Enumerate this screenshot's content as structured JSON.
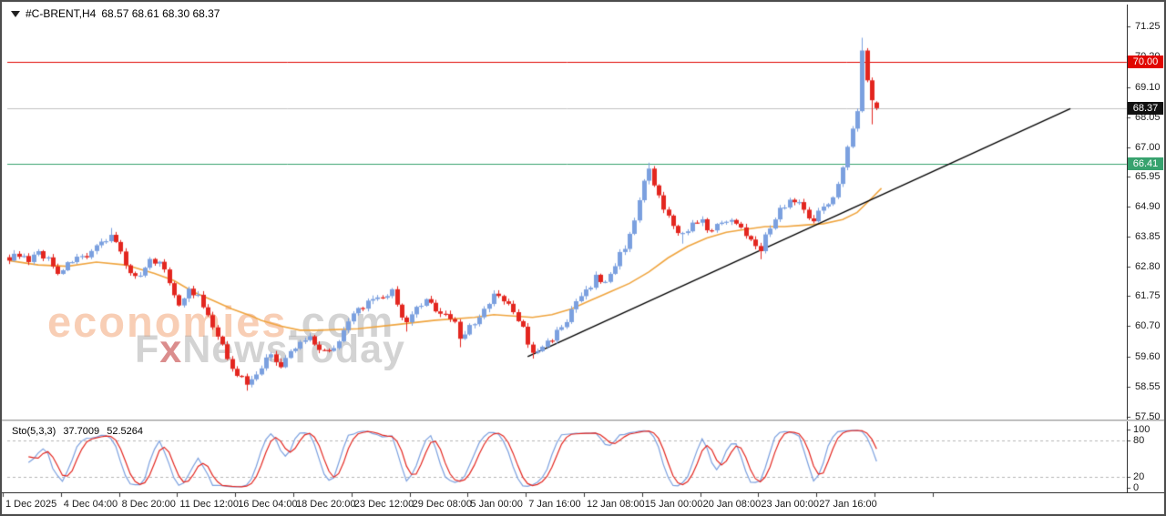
{
  "window": {
    "title_symbol": "#C-BRENT,H4",
    "title_quote": "68.57 68.61 68.30 68.37"
  },
  "watermark": {
    "line1": "economies",
    "line1_suffix": ".com",
    "line2_prefix": "F",
    "line2_x": "x",
    "line2_suffix": "NewsToday"
  },
  "colors": {
    "up_candle": "#7ba0df",
    "down_candle": "#e3261f",
    "ma_line": "#efa43e",
    "trend_line": "#000000",
    "stoch_k": "#7ba0df",
    "stoch_d": "#e3261f",
    "stoch_level_lines": "#b4b4b4",
    "axis_text": "#1a1a1a",
    "watermark_orange": "rgba(243,166,121,0.55)",
    "watermark_gray": "rgba(175,175,175,0.55)",
    "watermark_x_red": "rgba(200,80,80,0.65)"
  },
  "chart_data": {
    "type": "candlestick",
    "symbol": "#C-BRENT",
    "timeframe": "H4",
    "title": "#C-BRENT,H4 68.57 68.61 68.30 68.37",
    "last_quote": {
      "open": 68.57,
      "high": 68.61,
      "low": 68.3,
      "close": 68.37
    },
    "y_axis_ticks": [
      "71.25",
      "70.20",
      "69.10",
      "68.05",
      "67.00",
      "65.95",
      "64.90",
      "63.85",
      "62.80",
      "61.75",
      "60.70",
      "59.60",
      "58.55",
      "57.50"
    ],
    "y_tick_prices": [
      71.25,
      70.2,
      69.1,
      68.05,
      67.0,
      65.95,
      64.9,
      63.85,
      62.8,
      61.75,
      60.7,
      59.6,
      58.55,
      57.5
    ],
    "x_axis_ticks": [
      "1 Dec 2025",
      "4 Dec 04:00",
      "8 Dec 20:00",
      "11 Dec 12:00",
      "16 Dec 04:00",
      "18 Dec 20:00",
      "23 Dec 12:00",
      "29 Dec 08:00",
      "5 Jan 00:00",
      "7 Jan 16:00",
      "12 Jan 08:00",
      "15 Jan 00:00",
      "20 Jan 08:00",
      "23 Jan 00:00",
      "27 Jan 16:00"
    ],
    "price_levels": [
      {
        "price": 70.0,
        "label": "70.00",
        "line_color": "#e10600",
        "badge_color": "#e10600",
        "role": "resistance-line"
      },
      {
        "price": 68.37,
        "label": "68.37",
        "line_color": "#c0c0c0",
        "badge_color": "#111111",
        "role": "current-price-line"
      },
      {
        "price": 66.41,
        "label": "66.41",
        "line_color": "#37a26e",
        "badge_color": "#37a26e",
        "role": "support-line"
      }
    ],
    "trendline": {
      "from_bar": 107,
      "from_price": 59.62,
      "to_bar": 219,
      "to_price": 68.35
    },
    "bars": 180,
    "close_waypoints": [
      [
        0,
        63.0
      ],
      [
        2,
        63.25
      ],
      [
        4,
        62.9
      ],
      [
        6,
        63.3
      ],
      [
        8,
        63.05
      ],
      [
        10,
        62.6
      ],
      [
        12,
        62.85
      ],
      [
        14,
        63.2
      ],
      [
        16,
        63.0
      ],
      [
        18,
        63.45
      ],
      [
        20,
        63.8
      ],
      [
        21,
        63.95
      ],
      [
        23,
        63.3
      ],
      [
        25,
        62.55
      ],
      [
        27,
        62.4
      ],
      [
        29,
        62.95
      ],
      [
        31,
        63.05
      ],
      [
        33,
        62.2
      ],
      [
        35,
        61.5
      ],
      [
        37,
        61.95
      ],
      [
        39,
        61.7
      ],
      [
        41,
        61.0
      ],
      [
        43,
        60.3
      ],
      [
        45,
        59.6
      ],
      [
        47,
        59.0
      ],
      [
        49,
        58.7
      ],
      [
        50,
        58.8
      ],
      [
        52,
        59.3
      ],
      [
        54,
        59.7
      ],
      [
        56,
        59.25
      ],
      [
        58,
        59.75
      ],
      [
        60,
        60.1
      ],
      [
        62,
        60.35
      ],
      [
        64,
        59.9
      ],
      [
        66,
        59.8
      ],
      [
        68,
        60.25
      ],
      [
        70,
        60.8
      ],
      [
        72,
        61.3
      ],
      [
        74,
        61.5
      ],
      [
        76,
        61.6
      ],
      [
        78,
        61.8
      ],
      [
        79,
        61.9
      ],
      [
        81,
        61.1
      ],
      [
        82,
        60.75
      ],
      [
        84,
        61.3
      ],
      [
        86,
        61.55
      ],
      [
        88,
        61.3
      ],
      [
        90,
        61.1
      ],
      [
        92,
        60.8
      ],
      [
        93,
        60.25
      ],
      [
        95,
        60.7
      ],
      [
        97,
        61.0
      ],
      [
        99,
        61.45
      ],
      [
        100,
        61.8
      ],
      [
        102,
        61.6
      ],
      [
        104,
        61.2
      ],
      [
        106,
        60.6
      ],
      [
        107,
        60.0
      ],
      [
        108,
        59.75
      ],
      [
        109,
        59.85
      ],
      [
        111,
        60.1
      ],
      [
        113,
        60.5
      ],
      [
        115,
        60.9
      ],
      [
        117,
        61.5
      ],
      [
        119,
        61.9
      ],
      [
        121,
        62.4
      ],
      [
        123,
        62.2
      ],
      [
        125,
        62.9
      ],
      [
        127,
        63.5
      ],
      [
        129,
        64.5
      ],
      [
        131,
        65.7
      ],
      [
        132,
        66.2
      ],
      [
        133,
        65.6
      ],
      [
        134,
        65.2
      ],
      [
        135,
        64.8
      ],
      [
        137,
        64.2
      ],
      [
        139,
        63.95
      ],
      [
        141,
        64.25
      ],
      [
        143,
        64.35
      ],
      [
        145,
        64.0
      ],
      [
        147,
        64.4
      ],
      [
        149,
        64.5
      ],
      [
        151,
        64.1
      ],
      [
        153,
        63.8
      ],
      [
        155,
        63.45
      ],
      [
        157,
        64.2
      ],
      [
        159,
        64.8
      ],
      [
        161,
        65.15
      ],
      [
        163,
        65.0
      ],
      [
        165,
        64.6
      ],
      [
        166,
        64.5
      ],
      [
        168,
        64.85
      ],
      [
        170,
        65.3
      ],
      [
        172,
        66.3
      ],
      [
        174,
        67.6
      ],
      [
        175,
        68.3
      ],
      [
        176,
        70.4
      ],
      [
        177,
        69.35
      ],
      [
        178,
        68.65
      ],
      [
        179,
        68.37
      ]
    ],
    "wick_spikes": [
      [
        21,
        "h",
        64.15
      ],
      [
        49,
        "l",
        58.42
      ],
      [
        82,
        "l",
        60.5
      ],
      [
        93,
        "l",
        59.95
      ],
      [
        108,
        "l",
        59.55
      ],
      [
        132,
        "h",
        66.45
      ],
      [
        139,
        "l",
        63.6
      ],
      [
        155,
        "l",
        63.05
      ],
      [
        176,
        "h",
        70.85
      ],
      [
        178,
        "l",
        67.8
      ]
    ],
    "synthesis": {
      "wiggle": 0.24,
      "wick": 0.2
    },
    "ma": {
      "name": "moving-average",
      "points": [
        [
          0,
          63.0
        ],
        [
          6,
          62.85
        ],
        [
          12,
          62.8
        ],
        [
          18,
          62.95
        ],
        [
          24,
          62.85
        ],
        [
          30,
          62.55
        ],
        [
          34,
          62.3
        ],
        [
          38,
          61.9
        ],
        [
          42,
          61.6
        ],
        [
          46,
          61.3
        ],
        [
          50,
          61.05
        ],
        [
          52,
          60.9
        ],
        [
          56,
          60.7
        ],
        [
          60,
          60.55
        ],
        [
          64,
          60.55
        ],
        [
          72,
          60.6
        ],
        [
          80,
          60.75
        ],
        [
          88,
          60.9
        ],
        [
          96,
          61.0
        ],
        [
          100,
          61.1
        ],
        [
          104,
          61.05
        ],
        [
          108,
          61.0
        ],
        [
          112,
          61.1
        ],
        [
          116,
          61.3
        ],
        [
          120,
          61.6
        ],
        [
          124,
          61.9
        ],
        [
          128,
          62.2
        ],
        [
          132,
          62.6
        ],
        [
          136,
          63.1
        ],
        [
          140,
          63.5
        ],
        [
          144,
          63.8
        ],
        [
          148,
          64.0
        ],
        [
          152,
          64.1
        ],
        [
          156,
          64.2
        ],
        [
          160,
          64.2
        ],
        [
          164,
          64.25
        ],
        [
          168,
          64.3
        ],
        [
          172,
          64.45
        ],
        [
          175,
          64.7
        ],
        [
          178,
          65.2
        ],
        [
          180,
          65.55
        ]
      ]
    },
    "stochastic": {
      "label": "Sto(5,3,3)",
      "k_value": "37.7009",
      "d_value": "52.5264",
      "k_period": 5,
      "k_slowing": 3,
      "d_period": 3,
      "level_lines": [
        80,
        20
      ],
      "scale_ticks": [
        "100",
        "80",
        "20",
        "0"
      ],
      "scale_tick_values": [
        100,
        80,
        20,
        0
      ]
    }
  }
}
